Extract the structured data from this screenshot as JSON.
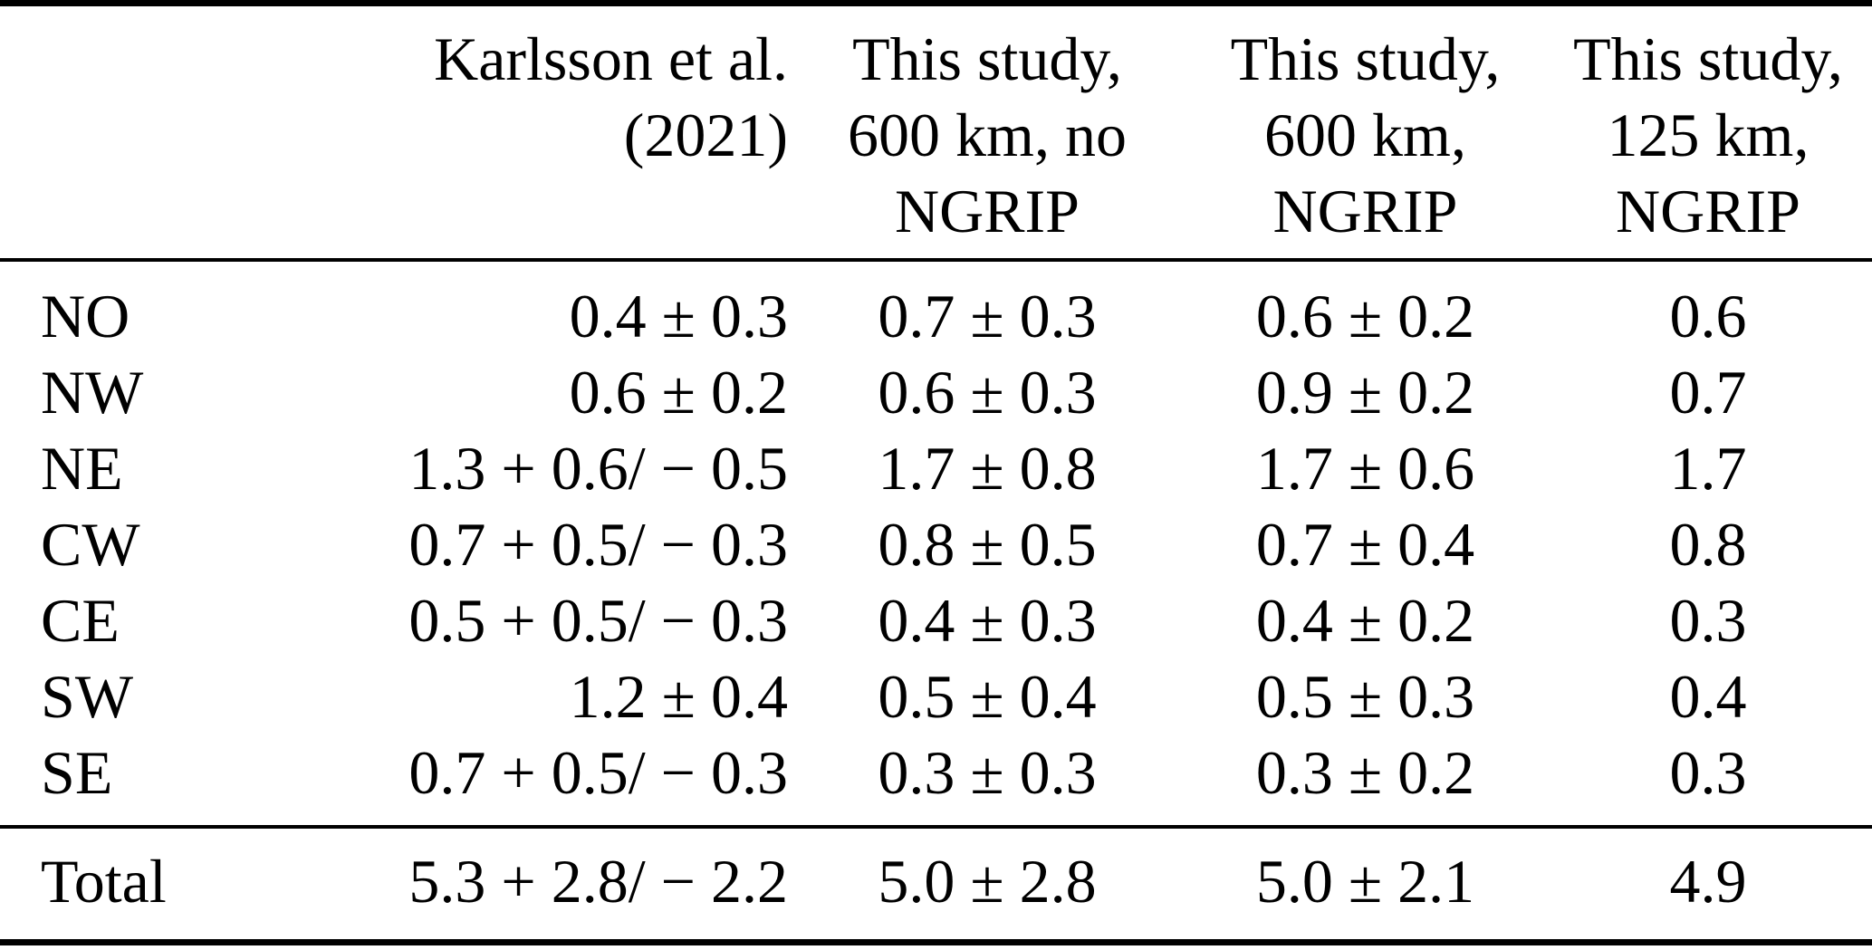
{
  "table": {
    "columns": [
      {
        "label": ""
      },
      {
        "label": "Karlsson et al. (2021)"
      },
      {
        "label": "This study,\n600 km, no\nNGRIP"
      },
      {
        "label": "This study,\n600 km,\nNGRIP"
      },
      {
        "label": "This study,\n125 km,\nNGRIP"
      }
    ],
    "rows": [
      {
        "label": "NO",
        "values": [
          "0.4 ± 0.3",
          "0.7 ± 0.3",
          "0.6 ± 0.2",
          "0.6"
        ]
      },
      {
        "label": "NW",
        "values": [
          "0.6 ± 0.2",
          "0.6 ± 0.3",
          "0.9 ± 0.2",
          "0.7"
        ]
      },
      {
        "label": "NE",
        "values": [
          "1.3 + 0.6/ − 0.5",
          "1.7 ± 0.8",
          "1.7 ± 0.6",
          "1.7"
        ]
      },
      {
        "label": "CW",
        "values": [
          "0.7 + 0.5/ − 0.3",
          "0.8 ± 0.5",
          "0.7 ± 0.4",
          "0.8"
        ]
      },
      {
        "label": "CE",
        "values": [
          "0.5 + 0.5/ − 0.3",
          "0.4 ± 0.3",
          "0.4 ± 0.2",
          "0.3"
        ]
      },
      {
        "label": "SW",
        "values": [
          "1.2 ± 0.4",
          "0.5 ± 0.4",
          "0.5 ± 0.3",
          "0.4"
        ]
      },
      {
        "label": "SE",
        "values": [
          "0.7 + 0.5/ − 0.3",
          "0.3 ± 0.3",
          "0.3 ± 0.2",
          "0.3"
        ]
      }
    ],
    "total": {
      "label": "Total",
      "values": [
        "5.3 + 2.8/ − 2.2",
        "5.0 ± 2.8",
        "5.0 ± 2.1",
        "4.9"
      ]
    }
  },
  "chart_data": {
    "type": "table",
    "title": "",
    "columns": [
      "",
      "Karlsson et al. (2021)",
      "This study, 600 km, no NGRIP",
      "This study, 600 km, NGRIP",
      "This study, 125 km, NGRIP"
    ],
    "rows": [
      [
        "NO",
        "0.4 ± 0.3",
        "0.7 ± 0.3",
        "0.6 ± 0.2",
        "0.6"
      ],
      [
        "NW",
        "0.6 ± 0.2",
        "0.6 ± 0.3",
        "0.9 ± 0.2",
        "0.7"
      ],
      [
        "NE",
        "1.3 + 0.6/ − 0.5",
        "1.7 ± 0.8",
        "1.7 ± 0.6",
        "1.7"
      ],
      [
        "CW",
        "0.7 + 0.5/ − 0.3",
        "0.8 ± 0.5",
        "0.7 ± 0.4",
        "0.8"
      ],
      [
        "CE",
        "0.5 + 0.5/ − 0.3",
        "0.4 ± 0.3",
        "0.4 ± 0.2",
        "0.3"
      ],
      [
        "SW",
        "1.2 ± 0.4",
        "0.5 ± 0.4",
        "0.5 ± 0.3",
        "0.4"
      ],
      [
        "SE",
        "0.7 + 0.5/ − 0.3",
        "0.3 ± 0.3",
        "0.3 ± 0.2",
        "0.3"
      ],
      [
        "Total",
        "5.3 + 2.8/ − 2.2",
        "5.0 ± 2.8",
        "5.0 ± 2.1",
        "4.9"
      ]
    ]
  }
}
